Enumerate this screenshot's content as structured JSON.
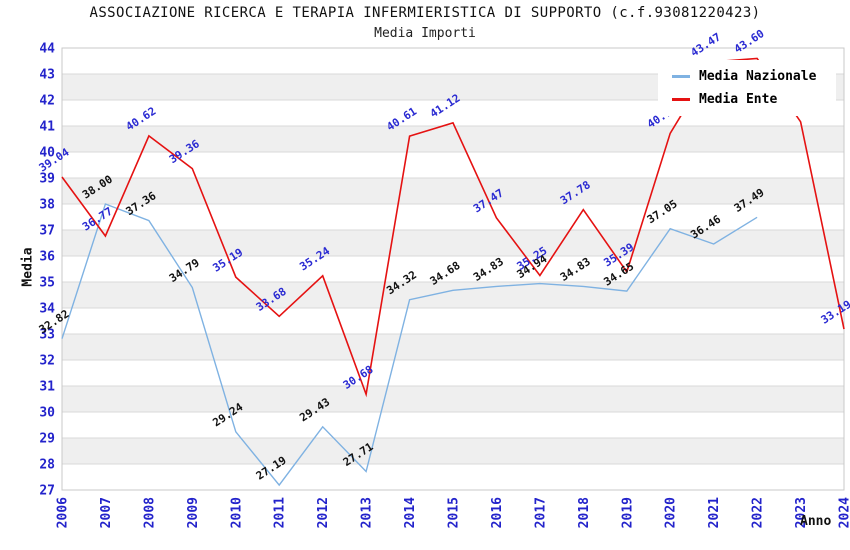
{
  "title": "ASSOCIAZIONE RICERCA E TERAPIA INFERMIERISTICA DI SUPPORTO (c.f.93081220423)",
  "subtitle": "Media Importi",
  "axis": {
    "y_label": "Media",
    "x_label": "Anno"
  },
  "legend": {
    "position": "top-right",
    "items": [
      {
        "label": "Media Nazionale",
        "color": "#7FB2E2"
      },
      {
        "label": "Media Ente",
        "color": "#E51212"
      }
    ]
  },
  "colors": {
    "band_gray": "#efefef",
    "band_white": "#ffffff",
    "grid_line": "#d9d9d9",
    "plot_border": "#c9c9c9",
    "axis_tick_text": "#2323cb",
    "nazionale_line": "#7FB2E2",
    "nazionale_label": "#111111",
    "ente_line": "#E51212",
    "ente_label": "#2A2AD2"
  },
  "chart_data": {
    "type": "line",
    "title": "ASSOCIAZIONE RICERCA E TERAPIA INFERMIERISTICA DI SUPPORTO (c.f.93081220423)",
    "subtitle": "Media Importi",
    "xlabel": "Anno",
    "ylabel": "Media",
    "x": [
      "2006",
      "2007",
      "2008",
      "2009",
      "2010",
      "2011",
      "2012",
      "2013",
      "2014",
      "2015",
      "2016",
      "2017",
      "2018",
      "2019",
      "2020",
      "2021",
      "2022",
      "2023",
      "2024"
    ],
    "ylim": [
      27,
      44
    ],
    "tick_step": 1,
    "grid": "horizontal-bands",
    "legend_position": "top-right",
    "series": [
      {
        "name": "Media Nazionale",
        "color": "#7FB2E2",
        "label_color": "#111111",
        "values": [
          32.82,
          38.0,
          37.36,
          34.79,
          29.24,
          27.19,
          29.43,
          27.71,
          34.32,
          34.68,
          34.83,
          34.94,
          34.83,
          34.65,
          37.05,
          36.46,
          37.49,
          null,
          null
        ]
      },
      {
        "name": "Media Ente",
        "color": "#E51212",
        "label_color": "#2A2AD2",
        "values": [
          39.04,
          36.77,
          40.62,
          39.36,
          35.19,
          33.68,
          35.24,
          30.68,
          40.61,
          41.12,
          37.47,
          35.25,
          37.78,
          35.39,
          40.72,
          43.47,
          43.6,
          41.16,
          33.19
        ]
      }
    ]
  }
}
